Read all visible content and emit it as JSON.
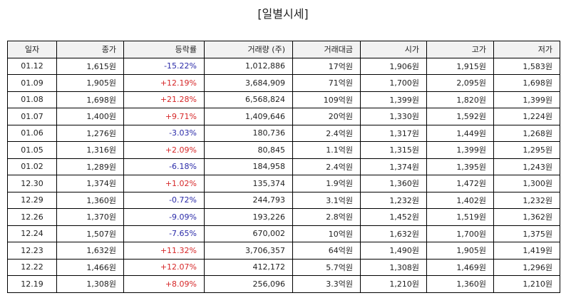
{
  "title": "[일별시세]",
  "up_color": "#d62728",
  "down_color": "#2a2aa8",
  "table": {
    "headers": [
      "일자",
      "종가",
      "등락률",
      "거래량 (주)",
      "거래대금",
      "시가",
      "고가",
      "저가"
    ],
    "rows": [
      [
        "01.12",
        "1,615원",
        "-15.22%",
        "1,012,886",
        "17억원",
        "1,906원",
        "1,915원",
        "1,583원"
      ],
      [
        "01.09",
        "1,905원",
        "+12.19%",
        "3,684,909",
        "71억원",
        "1,700원",
        "2,095원",
        "1,698원"
      ],
      [
        "01.08",
        "1,698원",
        "+21.28%",
        "6,568,824",
        "109억원",
        "1,399원",
        "1,820원",
        "1,399원"
      ],
      [
        "01.07",
        "1,400원",
        "+9.71%",
        "1,409,646",
        "20억원",
        "1,330원",
        "1,592원",
        "1,224원"
      ],
      [
        "01.06",
        "1,276원",
        "-3.03%",
        "180,736",
        "2.4억원",
        "1,317원",
        "1,449원",
        "1,268원"
      ],
      [
        "01.05",
        "1,316원",
        "+2.09%",
        "80,845",
        "1.1억원",
        "1,315원",
        "1,399원",
        "1,295원"
      ],
      [
        "01.02",
        "1,289원",
        "-6.18%",
        "184,958",
        "2.4억원",
        "1,374원",
        "1,395원",
        "1,243원"
      ],
      [
        "12.30",
        "1,374원",
        "+1.02%",
        "135,374",
        "1.9억원",
        "1,360원",
        "1,472원",
        "1,300원"
      ],
      [
        "12.29",
        "1,360원",
        "-0.72%",
        "244,793",
        "3.1억원",
        "1,232원",
        "1,402원",
        "1,232원"
      ],
      [
        "12.26",
        "1,370원",
        "-9.09%",
        "193,226",
        "2.8억원",
        "1,452원",
        "1,519원",
        "1,362원"
      ],
      [
        "12.24",
        "1,507원",
        "-7.65%",
        "670,002",
        "10억원",
        "1,632원",
        "1,700원",
        "1,375원"
      ],
      [
        "12.23",
        "1,632원",
        "+11.32%",
        "3,706,357",
        "64억원",
        "1,490원",
        "1,905원",
        "1,419원"
      ],
      [
        "12.22",
        "1,466원",
        "+12.07%",
        "412,172",
        "5.7억원",
        "1,308원",
        "1,469원",
        "1,296원"
      ],
      [
        "12.19",
        "1,308원",
        "+8.09%",
        "256,096",
        "3.3억원",
        "1,210원",
        "1,360원",
        "1,210원"
      ]
    ]
  }
}
